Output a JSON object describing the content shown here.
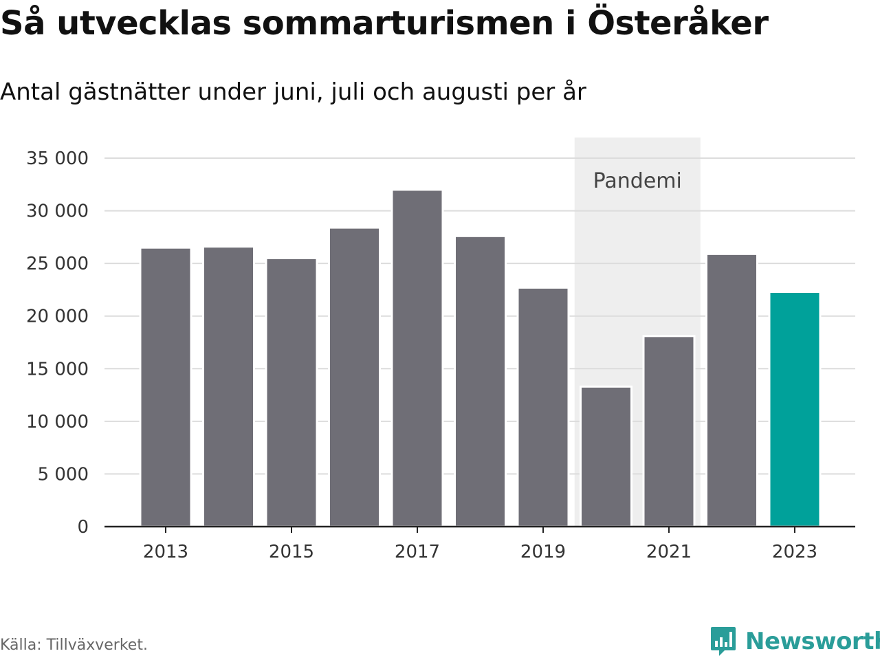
{
  "title": "Så utvecklas sommarturismen i Österåker",
  "subtitle": "Antal gästnätter under juni, juli och augusti per år",
  "source": "Källa: Tillväxverket.",
  "logo_text": "Newsworthy",
  "colors": {
    "bar": "#6f6e76",
    "highlight": "#00a19a",
    "band": "#eeeeee",
    "grid": "#dcdcdc",
    "logo": "#2a9d99"
  },
  "chart_data": {
    "type": "bar",
    "categories": [
      "2013",
      "2014",
      "2015",
      "2016",
      "2017",
      "2018",
      "2019",
      "2020",
      "2021",
      "2022",
      "2023"
    ],
    "values": [
      26500,
      26600,
      25500,
      28400,
      32000,
      27600,
      22700,
      13300,
      18100,
      25900,
      22300
    ],
    "highlight_index": 10,
    "title": "Så utvecklas sommarturismen i Österåker",
    "subtitle": "Antal gästnätter under juni, juli och augusti per år",
    "xlabel": "",
    "ylabel": "",
    "ylim": [
      0,
      35000
    ],
    "yticks": [
      0,
      5000,
      10000,
      15000,
      20000,
      25000,
      30000,
      35000
    ],
    "ytick_labels": [
      "0",
      "5 000",
      "10 000",
      "15 000",
      "20 000",
      "25 000",
      "30 000",
      "35 000"
    ],
    "xtick_labels": [
      "2013",
      "2015",
      "2017",
      "2019",
      "2021",
      "2023"
    ],
    "grid": true,
    "legend": "none",
    "annotations": [
      {
        "type": "band",
        "from": "2020",
        "to": "2021",
        "label": "Pandemi"
      }
    ]
  }
}
